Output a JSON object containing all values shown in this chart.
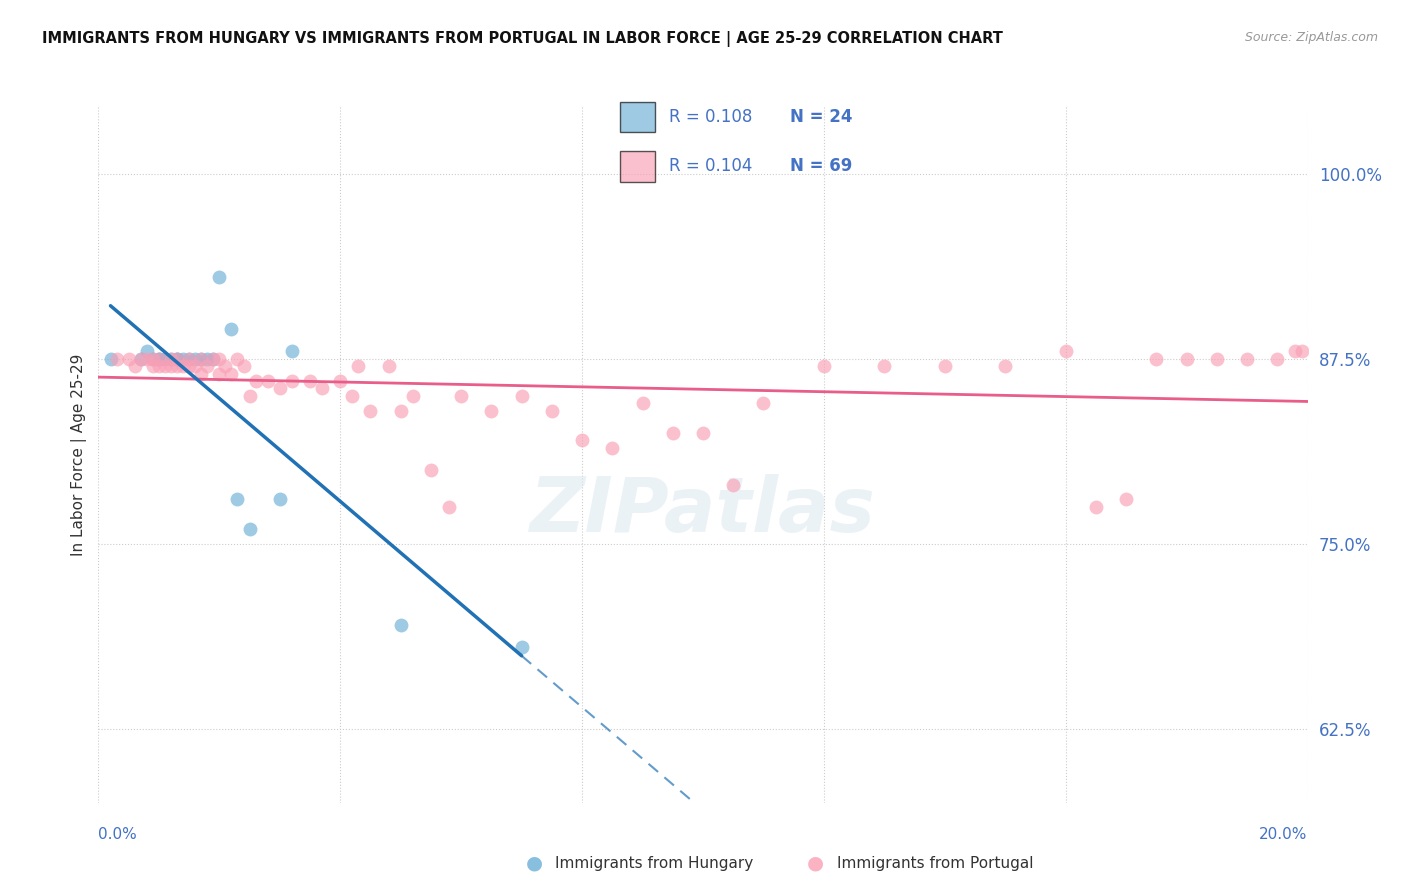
{
  "title": "IMMIGRANTS FROM HUNGARY VS IMMIGRANTS FROM PORTUGAL IN LABOR FORCE | AGE 25-29 CORRELATION CHART",
  "source_text": "Source: ZipAtlas.com",
  "ylabel": "In Labor Force | Age 25-29",
  "xlim": [
    0.0,
    0.2
  ],
  "ylim": [
    0.575,
    1.045
  ],
  "yticks": [
    0.625,
    0.75,
    0.875,
    1.0
  ],
  "ytick_labels": [
    "62.5%",
    "75.0%",
    "87.5%",
    "100.0%"
  ],
  "hungary_R": 0.108,
  "hungary_N": 24,
  "portugal_R": 0.104,
  "portugal_N": 69,
  "hungary_color": "#6baed6",
  "portugal_color": "#fa9fb5",
  "trend_hungary_color": "#2171b5",
  "trend_portugal_color": "#e85d8a",
  "background_color": "#ffffff",
  "grid_color": "#cccccc",
  "hungary_x": [
    0.002,
    0.007,
    0.008,
    0.009,
    0.01,
    0.01,
    0.011,
    0.012,
    0.013,
    0.013,
    0.014,
    0.015,
    0.016,
    0.017,
    0.018,
    0.019,
    0.02,
    0.022,
    0.023,
    0.025,
    0.03,
    0.032,
    0.05,
    0.07
  ],
  "hungary_y": [
    0.875,
    0.875,
    0.88,
    0.875,
    0.875,
    0.875,
    0.875,
    0.875,
    0.875,
    0.875,
    0.875,
    0.875,
    0.875,
    0.875,
    0.875,
    0.875,
    0.93,
    0.895,
    0.78,
    0.76,
    0.78,
    0.88,
    0.695,
    0.68
  ],
  "portugal_x": [
    0.003,
    0.005,
    0.006,
    0.007,
    0.008,
    0.009,
    0.009,
    0.01,
    0.01,
    0.011,
    0.012,
    0.012,
    0.013,
    0.013,
    0.014,
    0.015,
    0.015,
    0.016,
    0.017,
    0.017,
    0.018,
    0.019,
    0.02,
    0.02,
    0.021,
    0.022,
    0.023,
    0.024,
    0.025,
    0.026,
    0.028,
    0.03,
    0.032,
    0.035,
    0.037,
    0.04,
    0.042,
    0.043,
    0.045,
    0.048,
    0.05,
    0.052,
    0.055,
    0.058,
    0.06,
    0.065,
    0.07,
    0.075,
    0.08,
    0.085,
    0.09,
    0.095,
    0.1,
    0.105,
    0.11,
    0.12,
    0.13,
    0.14,
    0.15,
    0.16,
    0.165,
    0.17,
    0.175,
    0.18,
    0.185,
    0.19,
    0.195,
    0.198,
    0.199
  ],
  "portugal_y": [
    0.875,
    0.875,
    0.87,
    0.875,
    0.875,
    0.87,
    0.875,
    0.87,
    0.875,
    0.87,
    0.87,
    0.875,
    0.875,
    0.87,
    0.87,
    0.875,
    0.87,
    0.87,
    0.875,
    0.865,
    0.87,
    0.875,
    0.875,
    0.865,
    0.87,
    0.865,
    0.875,
    0.87,
    0.85,
    0.86,
    0.86,
    0.855,
    0.86,
    0.86,
    0.855,
    0.86,
    0.85,
    0.87,
    0.84,
    0.87,
    0.84,
    0.85,
    0.8,
    0.775,
    0.85,
    0.84,
    0.85,
    0.84,
    0.82,
    0.815,
    0.845,
    0.825,
    0.825,
    0.79,
    0.845,
    0.87,
    0.87,
    0.87,
    0.87,
    0.88,
    0.775,
    0.78,
    0.875,
    0.875,
    0.875,
    0.875,
    0.875,
    0.88,
    0.88
  ]
}
